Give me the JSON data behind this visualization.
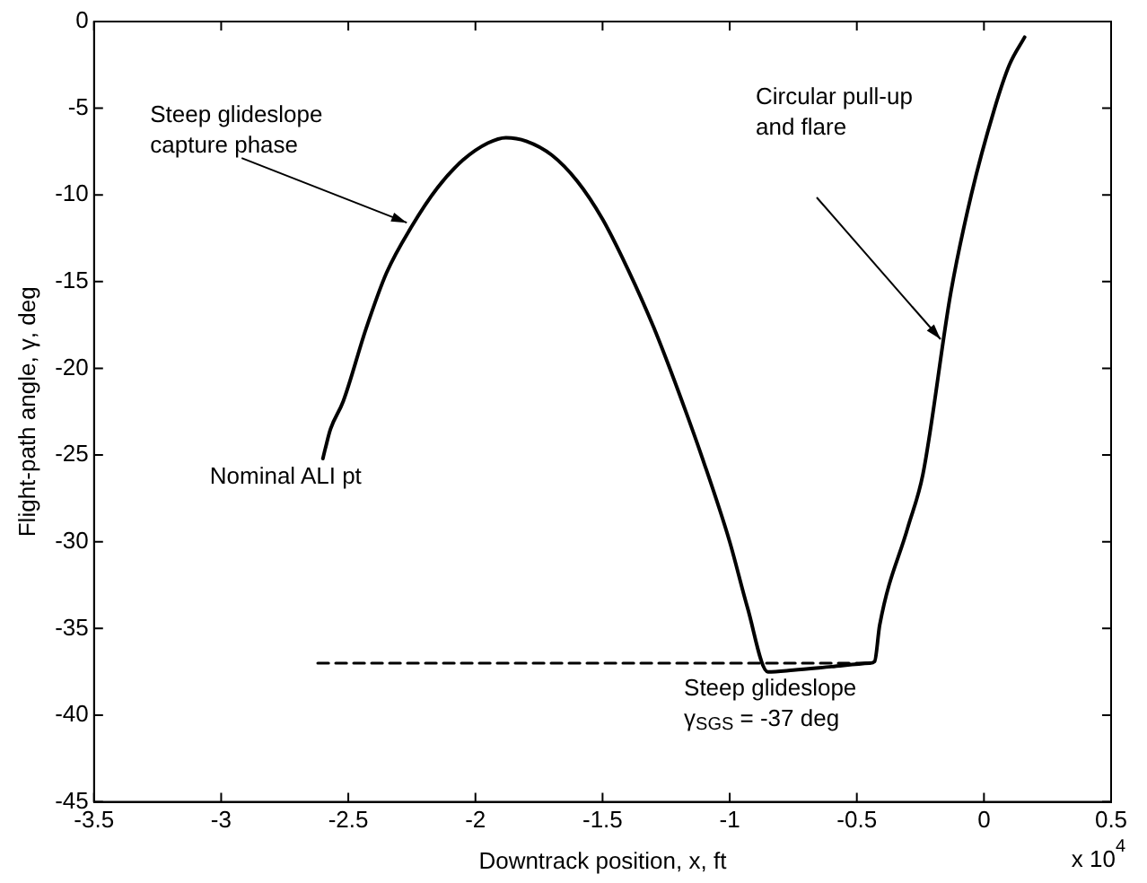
{
  "chart_data": {
    "type": "line",
    "xlabel": "Downtrack position, x, ft",
    "ylabel": "Flight-path angle, γ, deg",
    "xlim": [
      -3.5,
      0.5
    ],
    "xticks": [
      -3.5,
      -3,
      -2.5,
      -2,
      -1.5,
      -1,
      -0.5,
      0,
      0.5
    ],
    "ylim": [
      -45,
      0
    ],
    "yticks": [
      -45,
      -40,
      -35,
      -30,
      -25,
      -20,
      -15,
      -10,
      -5,
      0
    ],
    "grid": false,
    "legend": false,
    "marker": "none",
    "series": [
      {
        "color": "#000000",
        "line_style": "solid",
        "x": [
          -2.6,
          -2.59,
          -2.57,
          -2.52,
          -2.43,
          -2.35,
          -2.25,
          -2.15,
          -2.05,
          -1.95,
          -1.88,
          -1.8,
          -1.7,
          -1.6,
          -1.5,
          -1.4,
          -1.3,
          -1.2,
          -1.1,
          -1.0,
          -0.93,
          -0.85,
          -0.75,
          -0.6,
          -0.45,
          -0.43,
          -0.41,
          -0.3,
          -0.24,
          -0.13,
          -0.05,
          0.04,
          0.1,
          0.16
        ],
        "values": [
          -25.2,
          -24.6,
          -23.5,
          -21.9,
          -17.7,
          -14.5,
          -11.8,
          -9.6,
          -8.0,
          -7.0,
          -6.7,
          -6.9,
          -7.7,
          -9.2,
          -11.4,
          -14.3,
          -17.6,
          -21.4,
          -25.5,
          -30.0,
          -33.8,
          -37.5,
          -37.4,
          -37.2,
          -37.0,
          -36.9,
          -34.8,
          -29.2,
          -26.1,
          -15.6,
          -10.0,
          -5.1,
          -2.5,
          -0.9
        ]
      },
      {
        "color": "#000000",
        "line_style": "dashed",
        "x": [
          -2.62,
          -0.45
        ],
        "values": [
          -37,
          -37
        ]
      }
    ],
    "annotations": [
      {
        "text": "Steep glideslope\ncapture phase",
        "x": -2.27,
        "y": -11.6
      },
      "Circular pull-up\nand flare",
      {
        "text": "Nominal ALI pt",
        "x": -2.6,
        "y": -25.2
      },
      {
        "text": "Steep glideslope\nγ$_{SGS}$ = -37 deg",
        "x": -1.3,
        "y": -37
      },
      "x 10$^{4}$"
    ]
  }
}
